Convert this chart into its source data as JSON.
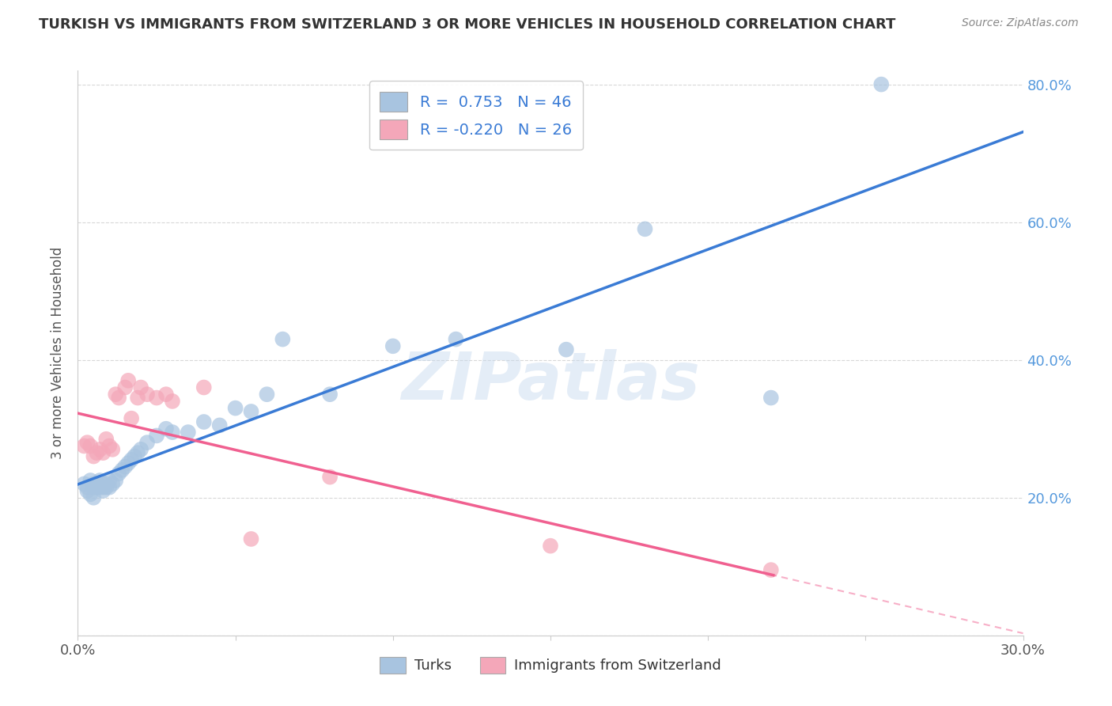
{
  "title": "TURKISH VS IMMIGRANTS FROM SWITZERLAND 3 OR MORE VEHICLES IN HOUSEHOLD CORRELATION CHART",
  "source": "Source: ZipAtlas.com",
  "ylabel": "3 or more Vehicles in Household",
  "x_min": 0.0,
  "x_max": 0.3,
  "y_min": 0.0,
  "y_max": 0.82,
  "x_ticks": [
    0.0,
    0.05,
    0.1,
    0.15,
    0.2,
    0.25,
    0.3
  ],
  "y_ticks": [
    0.0,
    0.2,
    0.4,
    0.6,
    0.8
  ],
  "legend_labels": [
    "Turks",
    "Immigrants from Switzerland"
  ],
  "turks_color": "#a8c4e0",
  "swiss_color": "#f4a7b9",
  "turks_line_color": "#3a7bd5",
  "swiss_line_color": "#f06090",
  "R_turks": 0.753,
  "N_turks": 46,
  "R_swiss": -0.22,
  "N_swiss": 26,
  "turks_x": [
    0.002,
    0.003,
    0.003,
    0.004,
    0.004,
    0.005,
    0.005,
    0.005,
    0.006,
    0.006,
    0.007,
    0.007,
    0.008,
    0.008,
    0.009,
    0.009,
    0.01,
    0.01,
    0.011,
    0.012,
    0.013,
    0.014,
    0.015,
    0.016,
    0.017,
    0.018,
    0.019,
    0.02,
    0.022,
    0.025,
    0.028,
    0.03,
    0.035,
    0.04,
    0.045,
    0.05,
    0.055,
    0.06,
    0.065,
    0.08,
    0.1,
    0.12,
    0.155,
    0.18,
    0.22,
    0.255
  ],
  "turks_y": [
    0.22,
    0.215,
    0.21,
    0.225,
    0.205,
    0.22,
    0.215,
    0.2,
    0.215,
    0.22,
    0.215,
    0.225,
    0.215,
    0.21,
    0.22,
    0.215,
    0.225,
    0.215,
    0.22,
    0.225,
    0.235,
    0.24,
    0.245,
    0.25,
    0.255,
    0.26,
    0.265,
    0.27,
    0.28,
    0.29,
    0.3,
    0.295,
    0.295,
    0.31,
    0.305,
    0.33,
    0.325,
    0.35,
    0.43,
    0.35,
    0.42,
    0.43,
    0.415,
    0.59,
    0.345,
    0.8
  ],
  "swiss_x": [
    0.002,
    0.003,
    0.004,
    0.005,
    0.006,
    0.007,
    0.008,
    0.009,
    0.01,
    0.011,
    0.012,
    0.013,
    0.015,
    0.016,
    0.017,
    0.019,
    0.02,
    0.022,
    0.025,
    0.028,
    0.03,
    0.04,
    0.055,
    0.08,
    0.15,
    0.22
  ],
  "swiss_y": [
    0.275,
    0.28,
    0.275,
    0.26,
    0.265,
    0.27,
    0.265,
    0.285,
    0.275,
    0.27,
    0.35,
    0.345,
    0.36,
    0.37,
    0.315,
    0.345,
    0.36,
    0.35,
    0.345,
    0.35,
    0.34,
    0.36,
    0.14,
    0.23,
    0.13,
    0.095
  ],
  "watermark_text": "ZIPatlas",
  "background_color": "#ffffff",
  "grid_color": "#d8d8d8"
}
